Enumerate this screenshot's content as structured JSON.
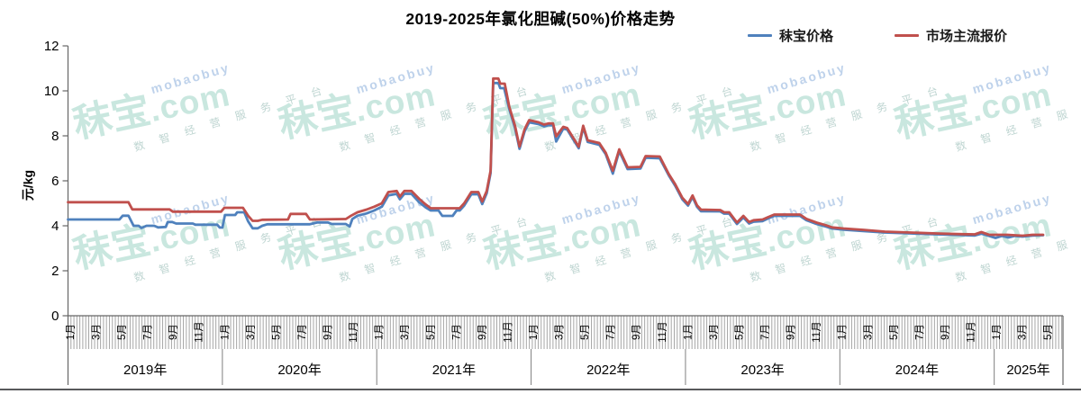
{
  "title": "2019-2025年氯化胆碱(50%)价格走势",
  "legend": [
    {
      "label": "秣宝价格",
      "color": "#4f81bd"
    },
    {
      "label": "市场主流报价",
      "color": "#c0504d"
    }
  ],
  "y_axis": {
    "unit": "元/kg",
    "ticks": [
      "0",
      "2",
      "4",
      "6",
      "8",
      "10",
      "12"
    ],
    "min": 0,
    "max": 12,
    "tick_step": 2
  },
  "x_axis": {
    "years": [
      {
        "label": "2019年",
        "start": 0,
        "span": 12,
        "months": [
          "1月",
          "3月",
          "5月",
          "7月",
          "9月",
          "11月"
        ]
      },
      {
        "label": "2020年",
        "start": 12,
        "span": 12,
        "months": [
          "1月",
          "3月",
          "5月",
          "7月",
          "9月",
          "11月"
        ]
      },
      {
        "label": "2021年",
        "start": 24,
        "span": 12,
        "months": [
          "1月",
          "3月",
          "5月",
          "7月",
          "9月",
          "11月"
        ]
      },
      {
        "label": "2022年",
        "start": 36,
        "span": 12,
        "months": [
          "1月",
          "3月",
          "5月",
          "7月",
          "9月",
          "11月"
        ]
      },
      {
        "label": "2023年",
        "start": 48,
        "span": 12,
        "months": [
          "1月",
          "3月",
          "5月",
          "7月",
          "9月",
          "11月"
        ]
      },
      {
        "label": "2024年",
        "start": 60,
        "span": 12,
        "months": [
          "1月",
          "3月",
          "5月",
          "7月",
          "9月",
          "11月"
        ]
      },
      {
        "label": "2025年",
        "start": 72,
        "span": 5.3,
        "months": [
          "1月",
          "3月",
          "5月"
        ]
      }
    ]
  },
  "watermark": {
    "brand": "秣宝",
    "domain": ".com",
    "latin": "mobaobuy",
    "tagline": "数 智 经 营 服 务 平 台"
  },
  "chart_data": {
    "type": "line",
    "x_unit": "months_since_2019-01",
    "title": "2019-2025年氯化胆碱(50%)价格走势",
    "ylabel": "元/kg",
    "ylim": [
      0,
      12
    ],
    "xlim_months": [
      0,
      77.3
    ],
    "grid": false,
    "legend_position": "top-right",
    "series": [
      {
        "name": "秣宝价格",
        "color": "#4f81bd",
        "points": [
          [
            0,
            4.28
          ],
          [
            4.0,
            4.28
          ],
          [
            4.25,
            4.45
          ],
          [
            4.7,
            4.45
          ],
          [
            5.1,
            4.0
          ],
          [
            5.5,
            4.0
          ],
          [
            5.7,
            3.9
          ],
          [
            6.1,
            4.0
          ],
          [
            6.7,
            4.0
          ],
          [
            7.0,
            3.93
          ],
          [
            7.6,
            3.95
          ],
          [
            7.75,
            4.17
          ],
          [
            8.1,
            4.17
          ],
          [
            8.4,
            4.1
          ],
          [
            9.7,
            4.1
          ],
          [
            9.9,
            4.05
          ],
          [
            11.6,
            4.05
          ],
          [
            11.8,
            3.92
          ],
          [
            12.0,
            3.92
          ],
          [
            12.2,
            4.48
          ],
          [
            13.0,
            4.48
          ],
          [
            13.15,
            4.6
          ],
          [
            13.7,
            4.6
          ],
          [
            14.0,
            4.2
          ],
          [
            14.35,
            3.89
          ],
          [
            14.75,
            3.89
          ],
          [
            15.1,
            4.0
          ],
          [
            15.5,
            4.07
          ],
          [
            18.8,
            4.07
          ],
          [
            19.4,
            4.15
          ],
          [
            20.2,
            4.15
          ],
          [
            20.5,
            4.08
          ],
          [
            21.6,
            4.08
          ],
          [
            21.9,
            3.97
          ],
          [
            22.1,
            4.3
          ],
          [
            22.5,
            4.45
          ],
          [
            23.2,
            4.55
          ],
          [
            23.8,
            4.68
          ],
          [
            24.4,
            4.85
          ],
          [
            24.9,
            5.35
          ],
          [
            25.55,
            5.42
          ],
          [
            25.8,
            5.18
          ],
          [
            26.15,
            5.42
          ],
          [
            26.7,
            5.42
          ],
          [
            27.3,
            5.05
          ],
          [
            27.8,
            4.82
          ],
          [
            28.2,
            4.68
          ],
          [
            28.8,
            4.68
          ],
          [
            29.1,
            4.44
          ],
          [
            29.9,
            4.44
          ],
          [
            30.2,
            4.68
          ],
          [
            30.45,
            4.68
          ],
          [
            30.8,
            4.9
          ],
          [
            31.35,
            5.4
          ],
          [
            31.9,
            5.4
          ],
          [
            32.2,
            4.97
          ],
          [
            32.55,
            5.45
          ],
          [
            32.85,
            6.35
          ],
          [
            33.05,
            10.35
          ],
          [
            33.45,
            10.35
          ],
          [
            33.6,
            10.12
          ],
          [
            33.9,
            10.12
          ],
          [
            34.3,
            9.2
          ],
          [
            34.75,
            8.35
          ],
          [
            35.1,
            7.42
          ],
          [
            35.5,
            8.2
          ],
          [
            35.85,
            8.6
          ],
          [
            36.6,
            8.52
          ],
          [
            37.0,
            8.42
          ],
          [
            37.35,
            8.47
          ],
          [
            37.7,
            8.47
          ],
          [
            37.95,
            7.75
          ],
          [
            38.5,
            8.32
          ],
          [
            38.8,
            8.28
          ],
          [
            39.7,
            7.45
          ],
          [
            40.05,
            8.38
          ],
          [
            40.4,
            7.73
          ],
          [
            41.3,
            7.6
          ],
          [
            41.8,
            7.18
          ],
          [
            42.35,
            6.32
          ],
          [
            42.85,
            7.32
          ],
          [
            43.5,
            6.52
          ],
          [
            44.5,
            6.55
          ],
          [
            44.9,
            7.03
          ],
          [
            46.0,
            7.0
          ],
          [
            46.7,
            6.24
          ],
          [
            47.2,
            5.78
          ],
          [
            47.75,
            5.18
          ],
          [
            48.2,
            4.9
          ],
          [
            48.55,
            5.28
          ],
          [
            48.9,
            4.84
          ],
          [
            49.2,
            4.65
          ],
          [
            50.7,
            4.64
          ],
          [
            51.0,
            4.54
          ],
          [
            51.4,
            4.54
          ],
          [
            52.0,
            4.08
          ],
          [
            52.5,
            4.37
          ],
          [
            52.95,
            4.1
          ],
          [
            53.3,
            4.18
          ],
          [
            54.0,
            4.21
          ],
          [
            54.4,
            4.32
          ],
          [
            54.9,
            4.44
          ],
          [
            56.9,
            4.44
          ],
          [
            57.4,
            4.25
          ],
          [
            58.2,
            4.08
          ],
          [
            58.9,
            3.97
          ],
          [
            59.4,
            3.88
          ],
          [
            60.3,
            3.83
          ],
          [
            61.8,
            3.77
          ],
          [
            63.5,
            3.7
          ],
          [
            65.5,
            3.66
          ],
          [
            67.5,
            3.62
          ],
          [
            69.5,
            3.59
          ],
          [
            70.5,
            3.57
          ],
          [
            71.0,
            3.65
          ],
          [
            71.6,
            3.55
          ],
          [
            72.1,
            3.46
          ],
          [
            72.6,
            3.55
          ],
          [
            73.1,
            3.48
          ],
          [
            73.6,
            3.55
          ],
          [
            74.2,
            3.52
          ],
          [
            75.0,
            3.57
          ],
          [
            75.8,
            3.58
          ]
        ]
      },
      {
        "name": "市场主流报价",
        "color": "#c0504d",
        "points": [
          [
            0,
            5.05
          ],
          [
            4.7,
            5.05
          ],
          [
            5.0,
            4.73
          ],
          [
            7.9,
            4.73
          ],
          [
            8.15,
            4.63
          ],
          [
            11.9,
            4.63
          ],
          [
            12.15,
            4.8
          ],
          [
            13.6,
            4.8
          ],
          [
            14.0,
            4.45
          ],
          [
            14.35,
            4.22
          ],
          [
            14.75,
            4.22
          ],
          [
            15.1,
            4.27
          ],
          [
            17.1,
            4.28
          ],
          [
            17.3,
            4.53
          ],
          [
            18.5,
            4.53
          ],
          [
            18.8,
            4.28
          ],
          [
            21.6,
            4.3
          ],
          [
            22.0,
            4.45
          ],
          [
            22.5,
            4.6
          ],
          [
            23.2,
            4.72
          ],
          [
            23.8,
            4.85
          ],
          [
            24.4,
            5.0
          ],
          [
            24.9,
            5.5
          ],
          [
            25.55,
            5.55
          ],
          [
            25.8,
            5.3
          ],
          [
            26.15,
            5.55
          ],
          [
            26.7,
            5.55
          ],
          [
            27.3,
            5.2
          ],
          [
            27.8,
            4.95
          ],
          [
            28.2,
            4.78
          ],
          [
            30.45,
            4.78
          ],
          [
            30.8,
            5.0
          ],
          [
            31.35,
            5.5
          ],
          [
            31.9,
            5.5
          ],
          [
            32.2,
            5.08
          ],
          [
            32.55,
            5.55
          ],
          [
            32.85,
            6.45
          ],
          [
            33.05,
            10.55
          ],
          [
            33.45,
            10.55
          ],
          [
            33.6,
            10.32
          ],
          [
            33.95,
            10.32
          ],
          [
            34.3,
            9.3
          ],
          [
            34.75,
            8.45
          ],
          [
            35.1,
            7.52
          ],
          [
            35.5,
            8.3
          ],
          [
            35.85,
            8.7
          ],
          [
            36.6,
            8.6
          ],
          [
            37.0,
            8.5
          ],
          [
            37.35,
            8.55
          ],
          [
            37.7,
            8.55
          ],
          [
            37.95,
            7.98
          ],
          [
            38.5,
            8.4
          ],
          [
            38.8,
            8.35
          ],
          [
            39.7,
            7.52
          ],
          [
            40.05,
            8.45
          ],
          [
            40.4,
            7.8
          ],
          [
            41.3,
            7.68
          ],
          [
            41.8,
            7.25
          ],
          [
            42.35,
            6.45
          ],
          [
            42.85,
            7.4
          ],
          [
            43.5,
            6.6
          ],
          [
            44.5,
            6.62
          ],
          [
            44.9,
            7.1
          ],
          [
            46.0,
            7.08
          ],
          [
            46.7,
            6.3
          ],
          [
            47.2,
            5.85
          ],
          [
            47.75,
            5.25
          ],
          [
            48.2,
            4.97
          ],
          [
            48.55,
            5.35
          ],
          [
            48.9,
            4.91
          ],
          [
            49.2,
            4.72
          ],
          [
            50.7,
            4.7
          ],
          [
            51.0,
            4.6
          ],
          [
            51.4,
            4.6
          ],
          [
            52.0,
            4.15
          ],
          [
            52.5,
            4.44
          ],
          [
            52.95,
            4.17
          ],
          [
            53.3,
            4.25
          ],
          [
            54.0,
            4.28
          ],
          [
            54.4,
            4.38
          ],
          [
            54.9,
            4.5
          ],
          [
            56.9,
            4.5
          ],
          [
            57.4,
            4.31
          ],
          [
            58.2,
            4.14
          ],
          [
            58.9,
            4.03
          ],
          [
            59.4,
            3.93
          ],
          [
            60.3,
            3.88
          ],
          [
            61.8,
            3.82
          ],
          [
            63.5,
            3.74
          ],
          [
            65.5,
            3.7
          ],
          [
            67.5,
            3.66
          ],
          [
            69.5,
            3.63
          ],
          [
            70.5,
            3.62
          ],
          [
            71.0,
            3.72
          ],
          [
            71.6,
            3.6
          ],
          [
            73.0,
            3.6
          ],
          [
            74.2,
            3.56
          ],
          [
            75.0,
            3.6
          ],
          [
            75.8,
            3.6
          ]
        ]
      }
    ]
  },
  "colors": {
    "axis": "#666666",
    "minor_tick": "#a6a6a6",
    "divider": "#7f7f7f",
    "label": "#000000",
    "bottom_rule": "#58595b"
  }
}
